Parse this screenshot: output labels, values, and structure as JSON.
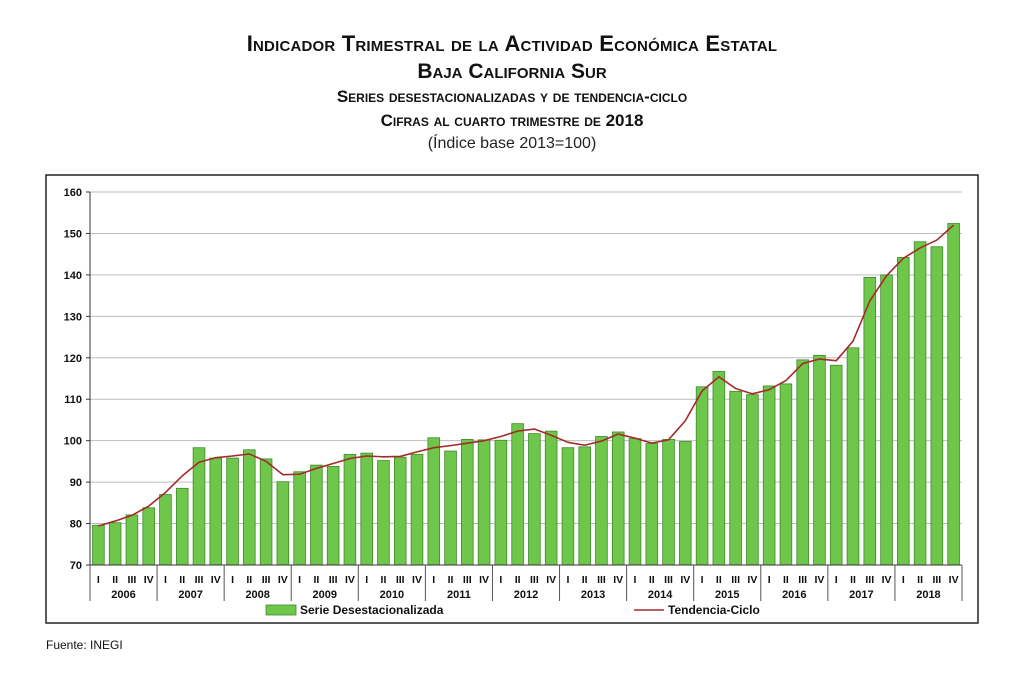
{
  "header": {
    "title": "Indicador Trimestral de la Actividad Económica Estatal",
    "state": "Baja California Sur",
    "series_line": "Series desestacionalizadas y de tendencia-ciclo",
    "period_line": "Cifras al cuarto trimestre de 2018",
    "base_line": "(Índice base 2013=100)"
  },
  "source": "Fuente: INEGI",
  "chart_data": {
    "type": "bar",
    "title": "Indicador Trimestral de la Actividad Económica Estatal",
    "subtitle": "Baja California Sur",
    "xlabel": "",
    "ylabel": "",
    "ylim": [
      70,
      160
    ],
    "yticks": [
      70,
      80,
      90,
      100,
      110,
      120,
      130,
      140,
      150,
      160
    ],
    "grid": true,
    "legend_position": "bottom",
    "quarter_labels": [
      "I",
      "II",
      "III",
      "IV"
    ],
    "years": [
      "2006",
      "2007",
      "2008",
      "2009",
      "2010",
      "2011",
      "2012",
      "2013",
      "2014",
      "2015",
      "2016",
      "2017",
      "2018"
    ],
    "colors": {
      "bar": "#6ec64a",
      "bar_edge": "#3f8a2a",
      "line": "#a52a2a"
    },
    "series": [
      {
        "name": "Serie Desestacionalizada",
        "type": "bar",
        "values": [
          79.6,
          80.2,
          82.1,
          83.8,
          87.0,
          88.5,
          98.3,
          95.8,
          95.8,
          97.8,
          95.6,
          90.1,
          92.5,
          94.1,
          93.8,
          96.7,
          97.0,
          95.2,
          96.0,
          96.7,
          100.7,
          97.5,
          100.3,
          100.2,
          100.1,
          104.1,
          101.7,
          102.3,
          98.3,
          98.5,
          101.0,
          102.1,
          100.5,
          99.3,
          100.3,
          99.8,
          113.0,
          116.7,
          111.9,
          111.1,
          113.2,
          113.7,
          119.5,
          120.6,
          118.2,
          122.4,
          139.4,
          140.0,
          144.2,
          148.0,
          146.8,
          152.4
        ]
      },
      {
        "name": "Tendencia-Ciclo",
        "type": "line",
        "values": [
          79.4,
          80.6,
          82.0,
          84.2,
          87.5,
          91.5,
          94.8,
          95.9,
          96.3,
          96.8,
          95.0,
          91.8,
          91.9,
          93.3,
          94.5,
          95.7,
          96.3,
          96.1,
          96.2,
          97.3,
          98.3,
          98.8,
          99.4,
          100.0,
          101.0,
          102.3,
          102.8,
          101.3,
          99.6,
          98.9,
          99.9,
          101.6,
          100.6,
          99.4,
          100.2,
          104.8,
          112.0,
          115.4,
          112.6,
          111.3,
          112.3,
          114.5,
          118.6,
          119.7,
          119.3,
          124.0,
          133.7,
          139.8,
          144.0,
          146.5,
          148.4,
          152.0
        ]
      }
    ]
  }
}
